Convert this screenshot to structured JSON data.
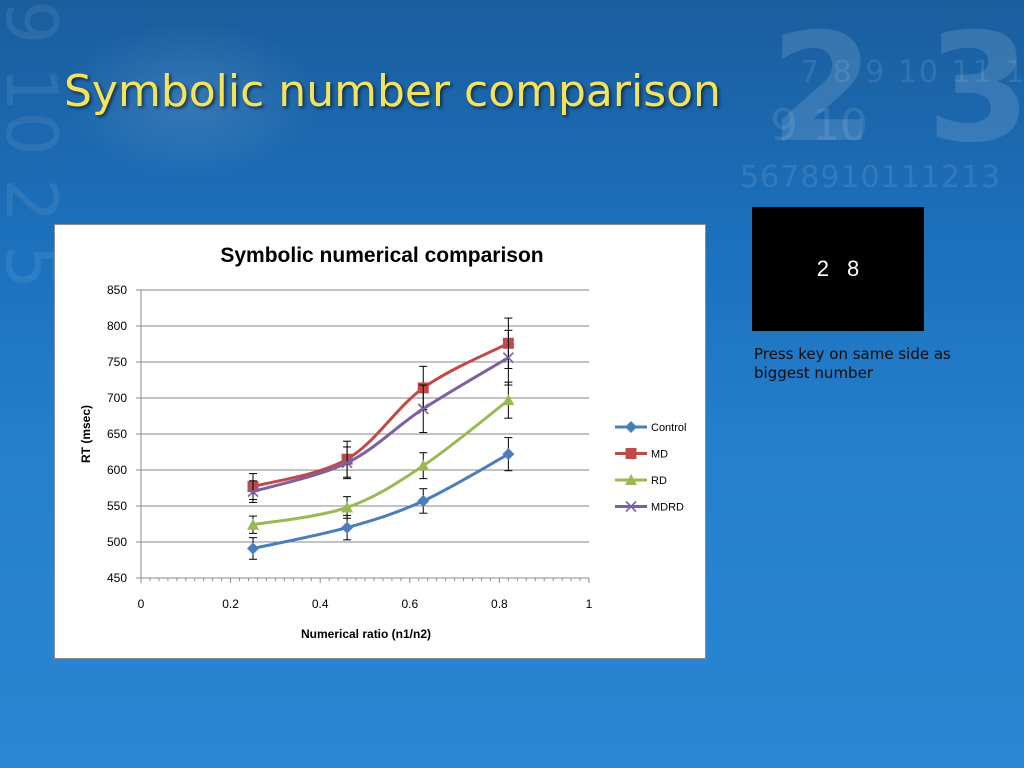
{
  "slide": {
    "title": "Symbolic number comparison",
    "stimulus": {
      "left_digit": "2",
      "right_digit": "8"
    },
    "instruction": "Press key on same side as biggest number"
  },
  "colors": {
    "background": "#1d72bf",
    "title": "#f6e35a",
    "Control": "#4a7ebb",
    "MD": "#be4b48",
    "RD": "#98b954",
    "MDRD": "#7d60a0"
  },
  "chart_data": {
    "type": "line",
    "title": "Symbolic numerical comparison",
    "xlabel": "Numerical ratio (n1/n2)",
    "ylabel": "RT (msec)",
    "xlim": [
      0,
      1
    ],
    "ylim": [
      450,
      850
    ],
    "x_ticks": [
      "0",
      "0.2",
      "0.4",
      "0.6",
      "0.8",
      "1"
    ],
    "y_ticks": [
      "450",
      "500",
      "550",
      "600",
      "650",
      "700",
      "750",
      "800",
      "850"
    ],
    "grid": "horizontal",
    "legend_position": "right",
    "series": [
      {
        "name": "Control",
        "marker": "diamond",
        "color": "#4a7ebb",
        "x": [
          0.25,
          0.46,
          0.63,
          0.82
        ],
        "y": [
          491,
          520,
          557,
          622
        ],
        "error": [
          15,
          17,
          17,
          23
        ]
      },
      {
        "name": "MD",
        "marker": "square",
        "color": "#be4b48",
        "x": [
          0.25,
          0.46,
          0.63,
          0.82
        ],
        "y": [
          577,
          615,
          714,
          776
        ],
        "error": [
          18,
          25,
          30,
          35
        ]
      },
      {
        "name": "RD",
        "marker": "triangle",
        "color": "#98b954",
        "x": [
          0.25,
          0.46,
          0.63,
          0.82
        ],
        "y": [
          524,
          548,
          606,
          697
        ],
        "error": [
          12,
          15,
          18,
          25
        ]
      },
      {
        "name": "MDRD",
        "marker": "x",
        "color": "#7d60a0",
        "x": [
          0.25,
          0.46,
          0.63,
          0.82
        ],
        "y": [
          570,
          610,
          685,
          756
        ],
        "error": [
          15,
          22,
          33,
          38
        ]
      }
    ]
  }
}
